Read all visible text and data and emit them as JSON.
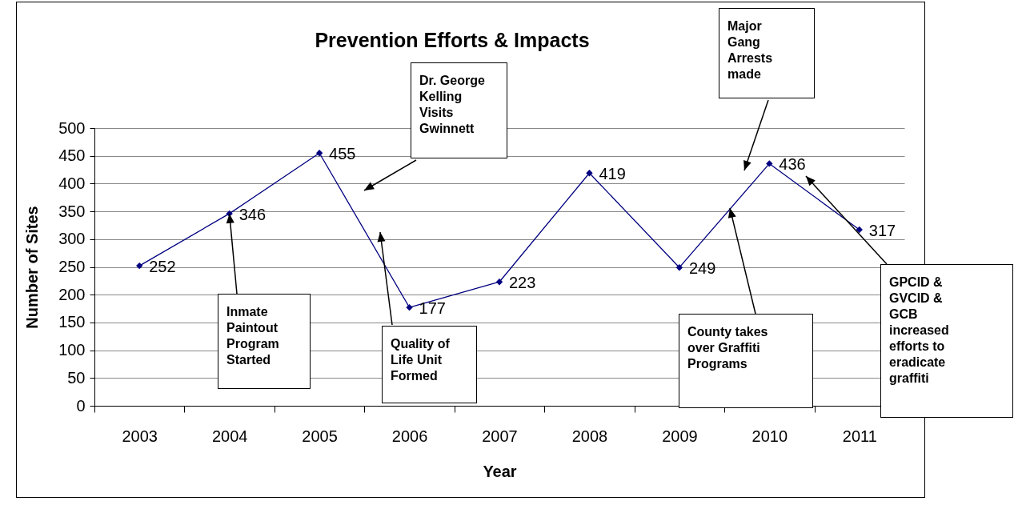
{
  "chart_data": {
    "type": "line",
    "title": "Prevention Efforts & Impacts",
    "xlabel": "Year",
    "ylabel": "Number of Sites",
    "categories": [
      "2003",
      "2004",
      "2005",
      "2006",
      "2007",
      "2008",
      "2009",
      "2010",
      "2011"
    ],
    "values": [
      252,
      346,
      455,
      177,
      223,
      419,
      249,
      436,
      317
    ],
    "color": "#000080",
    "marker": "diamond",
    "data_labels": true,
    "grid": "y",
    "ylim": [
      0,
      500
    ],
    "yticks": [
      0,
      50,
      100,
      150,
      200,
      250,
      300,
      350,
      400,
      450,
      500
    ],
    "annotations": [
      "Major Gang Arrests made",
      "Dr. George Kelling Visits Gwinnett",
      "GPCID & GVCID & GCB increased efforts to eradicate graffiti",
      {
        "text": "Inmate Paintout Program Started",
        "x": "2004",
        "y": 346
      },
      "Quality of Life Unit Formed",
      {
        "text": "County takes over Graffiti Programs",
        "y": 356
      }
    ]
  }
}
